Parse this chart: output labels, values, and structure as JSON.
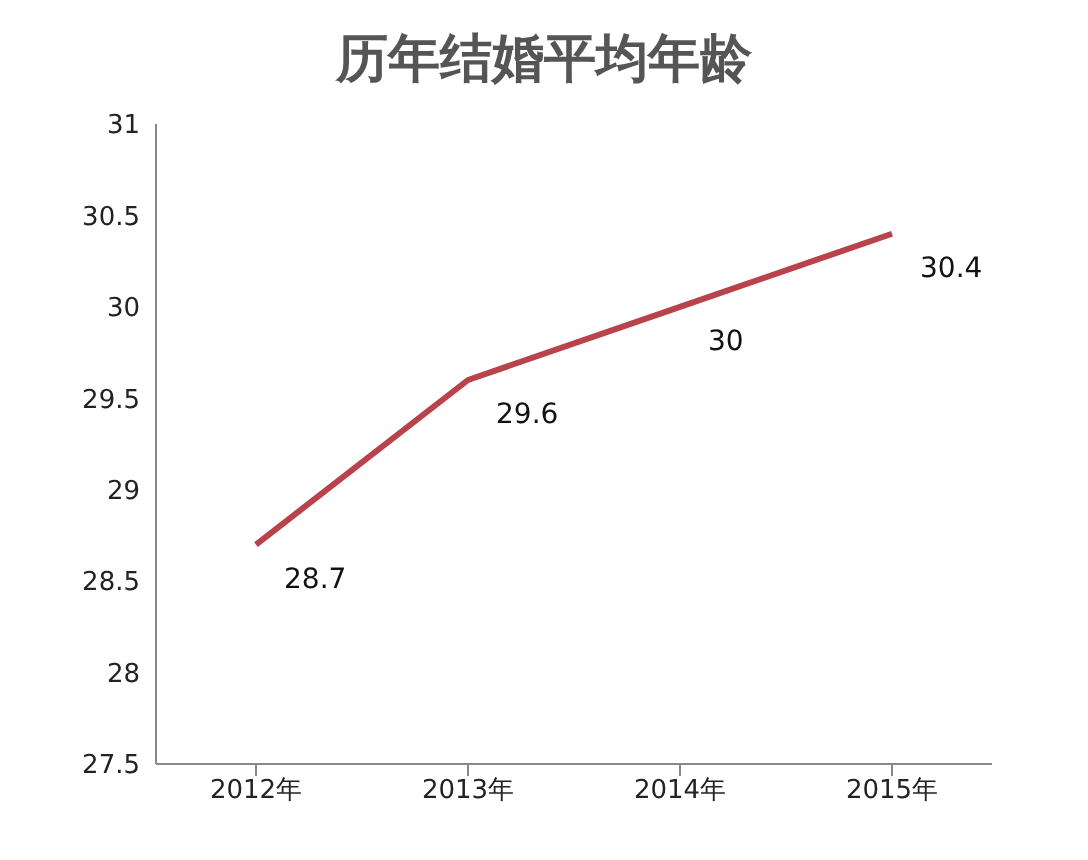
{
  "chart_data": {
    "type": "line",
    "title": "历年结婚平均年龄",
    "categories": [
      "2012年",
      "2013年",
      "2014年",
      "2015年"
    ],
    "series": [
      {
        "color": "#b8434a",
        "values": [
          28.7,
          29.6,
          30,
          30.4
        ]
      }
    ],
    "ylim": [
      27.5,
      31
    ],
    "yticks": [
      27.5,
      28,
      28.5,
      29,
      29.5,
      30,
      30.5,
      31
    ],
    "grid": false,
    "legend": false,
    "marker": "none",
    "line_style": "solid",
    "data_labels": true
  }
}
